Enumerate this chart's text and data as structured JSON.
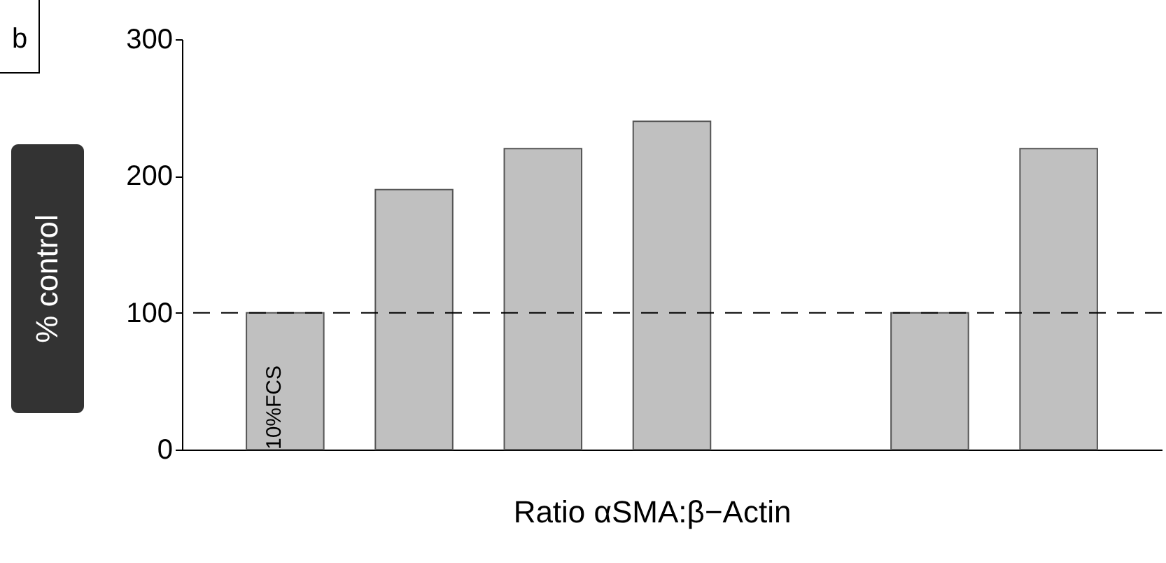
{
  "chart_data": {
    "type": "bar",
    "xlabel": "Ratio αSMA:β−Actin",
    "ylabel": "% control",
    "categories": [
      null,
      null,
      null,
      null,
      null,
      null,
      null
    ],
    "values": [
      100,
      190,
      220,
      240,
      null,
      100,
      220
    ],
    "color": "#c0c0c0",
    "ylim": [
      0,
      300
    ],
    "yticks": [
      0,
      100,
      200,
      300
    ],
    "ref_lines": [
      {
        "axis": "y",
        "value": 100,
        "color": "#000000",
        "line_style": "dashed"
      }
    ],
    "annotations": [
      "b",
      "10%FCS"
    ],
    "grid": false
  }
}
